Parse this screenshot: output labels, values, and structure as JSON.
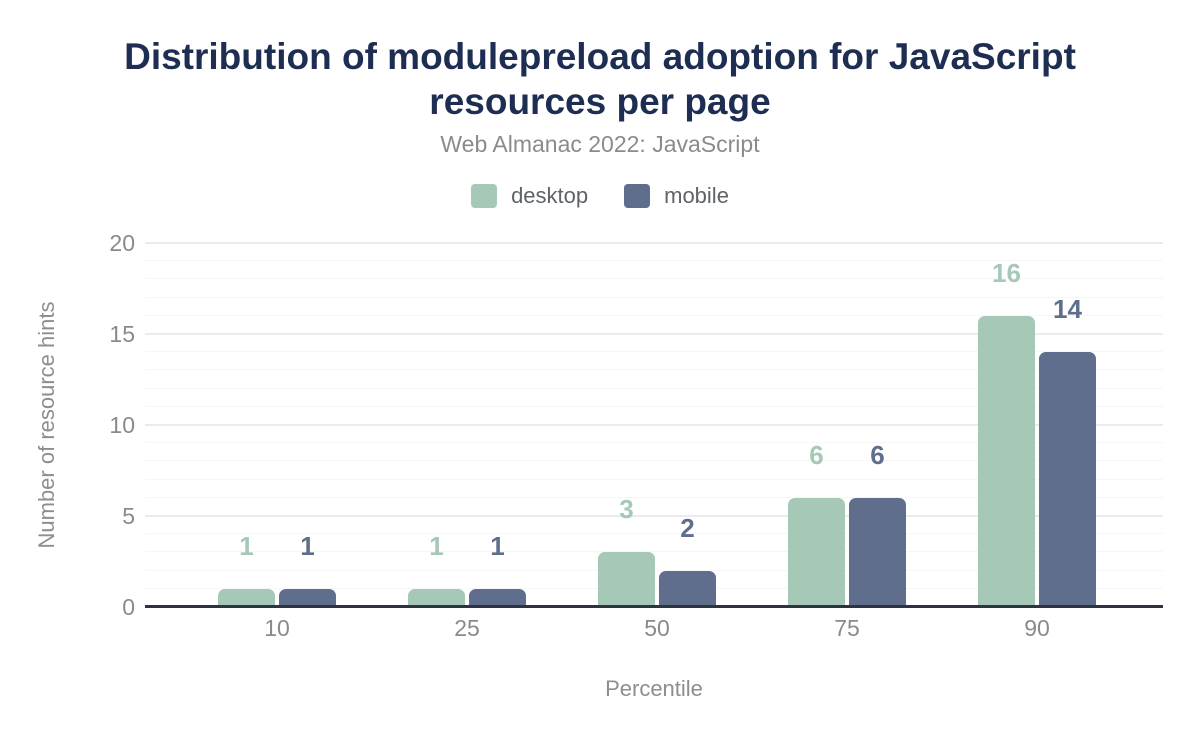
{
  "title": "Distribution of modulepreload adoption for JavaScript resources per page",
  "subtitle": "Web Almanac 2022: JavaScript",
  "legend": [
    {
      "label": "desktop",
      "color": "#a6c8b6"
    },
    {
      "label": "mobile",
      "color": "#5f6e8c"
    }
  ],
  "chart_data": {
    "type": "bar",
    "categories": [
      "10",
      "25",
      "50",
      "75",
      "90"
    ],
    "series": [
      {
        "name": "desktop",
        "color": "#a6c8b6",
        "values": [
          1,
          1,
          3,
          6,
          16
        ]
      },
      {
        "name": "mobile",
        "color": "#5f6e8c",
        "values": [
          1,
          1,
          2,
          6,
          14
        ]
      }
    ],
    "title": "Distribution of modulepreload adoption for JavaScript resources per page",
    "subtitle": "Web Almanac 2022: JavaScript",
    "xlabel": "Percentile",
    "ylabel": "Number of resource hints",
    "ylim": [
      0,
      20
    ],
    "yticks": [
      0,
      5,
      10,
      15,
      20
    ],
    "grid": "horizontal minor lines every 1 unit, major lines every 5 units",
    "legend_position": "top center",
    "value_labels": "above bars, colored per series"
  },
  "colors": {
    "background": "#ffffff",
    "title_text": "#1e2d52",
    "subtitle_text": "#8b8b8b",
    "legend_text": "#5f6368",
    "tick_text": "#8a8a8a",
    "axis_title_text": "#8e8e8e",
    "axis_line": "#2d3440",
    "grid_minor": "#f6f6f6",
    "grid_major": "#ebebeb",
    "desktop_series": "#a6c8b6",
    "mobile_series": "#5f6e8c"
  }
}
